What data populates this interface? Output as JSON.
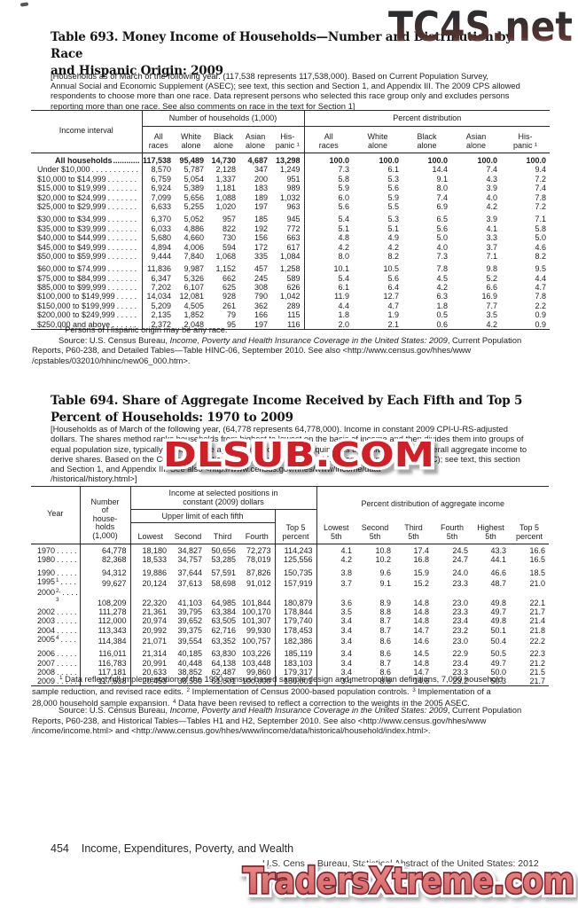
{
  "colors": {
    "watermark_red": "#d01f26",
    "watermark_bottom_fill": "#e07878",
    "text": "#1c1c1c"
  },
  "watermarks": {
    "top": "TC4S.net",
    "middle": "DLSUB.COM",
    "bottom": "TradersXtreme.com"
  },
  "t693": {
    "title_line1": "Table 693. Money Income of Households—Number and Distribution by Race",
    "title_line2": "and Hispanic Origin: 2009",
    "headnote_lines": [
      "[Households as of March of the following year. (117,538 represents 117,538,000). Based on Current Population Survey,",
      "Annual Social and Economic Supplement (ASEC); see text, this section and Section 1, and Appendix III. The 2009 CPS allowed",
      "respondents to choose more than one race. Data represent persons who selected this race group only and excludes persons",
      "reporting more than one race. See also comments on race in the text for Section 1]"
    ],
    "stub_header": "Income interval",
    "group_headers": [
      "Number of households (1,000)",
      "Percent distribution"
    ],
    "columns": [
      "All\nraces",
      "White\nalone",
      "Black\nalone",
      "Asian\nalone",
      "His-\npanic ¹",
      "All\nraces",
      "White\nalone",
      "Black\nalone",
      "Asian\nalone",
      "His-\npanic ¹"
    ],
    "total_label": "All households",
    "total_values": [
      "117,538",
      "95,489",
      "14,730",
      "4,687",
      "13,298",
      "100.0",
      "100.0",
      "100.0",
      "100.0",
      "100.0"
    ],
    "rows": [
      {
        "label": "Under $10,000",
        "values": [
          "8,570",
          "5,787",
          "2,128",
          "347",
          "1,249",
          "7.3",
          "6.1",
          "14.4",
          "7.4",
          "9.4"
        ]
      },
      {
        "label": "$10,000 to $14,999",
        "values": [
          "6,759",
          "5,054",
          "1,337",
          "200",
          "951",
          "5.8",
          "5.3",
          "9.1",
          "4.3",
          "7.2"
        ]
      },
      {
        "label": "$15,000 to $19,999",
        "values": [
          "6,924",
          "5,389",
          "1,181",
          "183",
          "989",
          "5.9",
          "5.6",
          "8.0",
          "3.9",
          "7.4"
        ]
      },
      {
        "label": "$20,000 to $24,999",
        "values": [
          "7,099",
          "5,656",
          "1,088",
          "189",
          "1,032",
          "6.0",
          "5.9",
          "7.4",
          "4.0",
          "7.8"
        ]
      },
      {
        "label": "$25,000 to $29,999",
        "values": [
          "6,633",
          "5,255",
          "1,020",
          "197",
          "963",
          "5.6",
          "5.5",
          "6.9",
          "4.2",
          "7.2"
        ]
      },
      {
        "label": "$30,000 to $34,999",
        "gap": true,
        "values": [
          "6,370",
          "5,052",
          "957",
          "185",
          "945",
          "5.4",
          "5.3",
          "6.5",
          "3.9",
          "7.1"
        ]
      },
      {
        "label": "$35,000 to $39,999",
        "values": [
          "6,033",
          "4,886",
          "822",
          "192",
          "772",
          "5.1",
          "5.1",
          "5.6",
          "4.1",
          "5.8"
        ]
      },
      {
        "label": "$40,000 to $44,999",
        "values": [
          "5,680",
          "4,660",
          "730",
          "156",
          "663",
          "4.8",
          "4.9",
          "5.0",
          "3.3",
          "5.0"
        ]
      },
      {
        "label": "$45,000 to $49,999",
        "values": [
          "4,894",
          "4,006",
          "594",
          "172",
          "617",
          "4.2",
          "4.2",
          "4.0",
          "3.7",
          "4.6"
        ]
      },
      {
        "label": "$50,000 to $59,999",
        "values": [
          "9,444",
          "7,840",
          "1,068",
          "335",
          "1,084",
          "8.0",
          "8.2",
          "7.3",
          "7.1",
          "8.2"
        ]
      },
      {
        "label": "$60,000 to $74,999",
        "gap": true,
        "values": [
          "11,836",
          "9,987",
          "1,152",
          "457",
          "1,258",
          "10.1",
          "10.5",
          "7.8",
          "9.8",
          "9.5"
        ]
      },
      {
        "label": "$75,000 to $84,999",
        "values": [
          "6,347",
          "5,326",
          "662",
          "245",
          "589",
          "5.4",
          "5.6",
          "4.5",
          "5.2",
          "4.4"
        ]
      },
      {
        "label": "$85,000 to $99,999",
        "values": [
          "7,202",
          "6,107",
          "625",
          "308",
          "626",
          "6.1",
          "6.4",
          "4.2",
          "6.6",
          "4.7"
        ]
      },
      {
        "label": "$100,000 to $149,999",
        "values": [
          "14,034",
          "12,081",
          "928",
          "790",
          "1,042",
          "11.9",
          "12.7",
          "6.3",
          "16.9",
          "7.8"
        ]
      },
      {
        "label": "$150,000 to $199,999",
        "values": [
          "5,209",
          "4,505",
          "261",
          "362",
          "289",
          "4.4",
          "4.7",
          "1.8",
          "7.7",
          "2.2"
        ]
      },
      {
        "label": "$200,000 to $249,999",
        "values": [
          "2,135",
          "1,852",
          "79",
          "166",
          "115",
          "1.8",
          "1.9",
          "0.5",
          "3.5",
          "0.9"
        ]
      },
      {
        "label": "$250,000 and above",
        "values": [
          "2,372",
          "2,048",
          "95",
          "197",
          "116",
          "2.0",
          "2.1",
          "0.6",
          "4.2",
          "0.9"
        ]
      }
    ],
    "footnote_lines": [
      [
        {
          "t": "1",
          "sup": 1
        },
        {
          "t": " Persons of Hispanic origin may be any race."
        }
      ]
    ],
    "source_lines": [
      [
        {
          "t": "Source: U.S. Census Bureau, "
        },
        {
          "t": "Income, Poverty and Health Insurance Coverage in the United States: 2009",
          "i": 1
        },
        {
          "t": ", Current Population"
        }
      ],
      "Reports, P60-238, and Detailed Tables—Table HINC-06, September 2010. See also <http://www.census.gov/hhes/www",
      "/cpstables/032010/hhinc/new06_000.htm>."
    ]
  },
  "t694": {
    "title_line1": "Table 694. Share of Aggregate Income Received by Each Fifth and Top 5",
    "title_line2": "Percent of Households: 1970 to 2009",
    "headnote_lines": [
      "[Households as of March of the following year, (64,778 represents 64,778,000). Income in constant 2009 CPI-U-RS-adjusted",
      "dollars. The shares method ranks households from highest to lowest on the basis of income and then divides them into groups of",
      "equal population size, typically quintiles. The aggregate income of each quintile is then divided by the overall aggregate income to",
      "derive shares. Based on the Current Population Survey, Annual Social and Economic Supplement (ASEC); see text, this section",
      "and Section 1, and Appendix III. See also <http://www.census.gov/hhes/www/income/data",
      "/historical/history.html>]"
    ],
    "year_header": "Year",
    "households_header": "Number\nof\nhouse-\nholds\n(1,000)",
    "income_spanner": "Income at selected positions in\nconstant (2009) dollars",
    "upper_limit_spanner": "Upper limit of each fifth",
    "top5_header": "Top 5\npercent",
    "percent_spanner": "Percent distribution of aggregate income",
    "fifth_columns": [
      "Lowest",
      "Second",
      "Third",
      "Fourth"
    ],
    "pct_columns": [
      "Lowest\n5th",
      "Second\n5th",
      "Third\n5th",
      "Fourth\n5th",
      "Highest\n5th",
      "Top 5\npercent"
    ],
    "rows": [
      {
        "y": "1970",
        "values": [
          "64,778",
          "18,180",
          "34,827",
          "50,656",
          "72,273",
          "114,243",
          "4.1",
          "10.8",
          "17.4",
          "24.5",
          "43.3",
          "16.6"
        ]
      },
      {
        "y": "1980",
        "values": [
          "82,368",
          "18,533",
          "34,757",
          "53,285",
          "78,019",
          "125,556",
          "4.2",
          "10.2",
          "16.8",
          "24.7",
          "44.1",
          "16.5"
        ]
      },
      {
        "y": "1990",
        "gap": true,
        "values": [
          "94,312",
          "19,886",
          "37,644",
          "57,591",
          "87,826",
          "150,735",
          "3.8",
          "9.6",
          "15.9",
          "24.0",
          "46.6",
          "18.5"
        ]
      },
      {
        "y": "1995",
        "sup": "1",
        "values": [
          "99,627",
          "20,124",
          "37,613",
          "58,698",
          "91,012",
          "157,919",
          "3.7",
          "9.1",
          "15.2",
          "23.3",
          "48.7",
          "21.0"
        ]
      },
      {
        "y": "2000",
        "sup": "2, 3",
        "gap": true,
        "values": [
          "108,209",
          "22,320",
          "41,103",
          "64,985",
          "101,844",
          "180,879",
          "3.6",
          "8.9",
          "14.8",
          "23.0",
          "49.8",
          "22.1"
        ]
      },
      {
        "y": "2002",
        "values": [
          "111,278",
          "21,361",
          "39,795",
          "63,384",
          "100,170",
          "178,844",
          "3.5",
          "8.8",
          "14.8",
          "23.3",
          "49.7",
          "21.7"
        ]
      },
      {
        "y": "2003",
        "values": [
          "112,000",
          "20,974",
          "39,652",
          "63,505",
          "101,307",
          "179,740",
          "3.4",
          "8.7",
          "14.8",
          "23.4",
          "49.8",
          "21.4"
        ]
      },
      {
        "y": "2004",
        "values": [
          "113,343",
          "20,992",
          "39,375",
          "62,716",
          "99,930",
          "178,453",
          "3.4",
          "8.7",
          "14.7",
          "23.2",
          "50.1",
          "21.8"
        ]
      },
      {
        "y": "2005",
        "sup": "4",
        "values": [
          "114,384",
          "21,071",
          "39,554",
          "63,352",
          "100,757",
          "182,386",
          "3.4",
          "8.6",
          "14.6",
          "23.0",
          "50.4",
          "22.2"
        ]
      },
      {
        "y": "2006",
        "gap": true,
        "values": [
          "116,011",
          "21,314",
          "40,185",
          "63,830",
          "103,226",
          "185,119",
          "3.4",
          "8.6",
          "14.5",
          "22.9",
          "50.5",
          "22.3"
        ]
      },
      {
        "y": "2007",
        "values": [
          "116,783",
          "20,991",
          "40,448",
          "64,138",
          "103,448",
          "183,103",
          "3.4",
          "8.7",
          "14.8",
          "23.4",
          "49.7",
          "21.2"
        ]
      },
      {
        "y": "2008",
        "values": [
          "117,181",
          "20,633",
          "38,852",
          "62,487",
          "99,860",
          "179,317",
          "3.4",
          "8.6",
          "14.7",
          "23.3",
          "50.0",
          "21.5"
        ]
      },
      {
        "y": "2009",
        "values": [
          "117,538",
          "20,453",
          "38,550",
          "61,801",
          "100,000",
          "180,001",
          "3.4",
          "8.6",
          "14.6",
          "23.2",
          "50.3",
          "21.7"
        ]
      }
    ],
    "footnote_lines": [
      [
        {
          "t": "1",
          "sup": 1
        },
        {
          "t": " Data reflect full implementation of the 1990 census-based sample design and metropolitan definitions, 7,000 household"
        }
      ],
      [
        {
          "t": "sample reduction, and revised race edits. "
        },
        {
          "t": "2",
          "sup": 1
        },
        {
          "t": " Implementation of Census 2000-based population controls. "
        },
        {
          "t": "3",
          "sup": 1
        },
        {
          "t": " Implementation of a"
        }
      ],
      [
        {
          "t": "28,000 household sample expansion. "
        },
        {
          "t": "4",
          "sup": 1
        },
        {
          "t": " Data have been revised to reflect a correction to the weights in the 2005 ASEC."
        }
      ]
    ],
    "source_lines": [
      [
        {
          "t": "Source: U.S. Census Bureau, "
        },
        {
          "t": "Income, Poverty and Health Insurance Coverage in the United States: 2009",
          "i": 1
        },
        {
          "t": ", Current Population"
        }
      ],
      "Reports, P60-238, and Historical Tables—Tables H1 and H2, September 2010. See also <http://www.census.gov/hhes/www",
      "/income/income.html> and <http://www.census.gov/hhes/www/income/data/historical/household/index.html>."
    ]
  },
  "footer": {
    "page_number": "454",
    "section_title": "Income, Expenditures, Poverty, and Wealth",
    "source_note": "U.S. Census Bureau, Statistical Abstract of the United States: 2012"
  }
}
